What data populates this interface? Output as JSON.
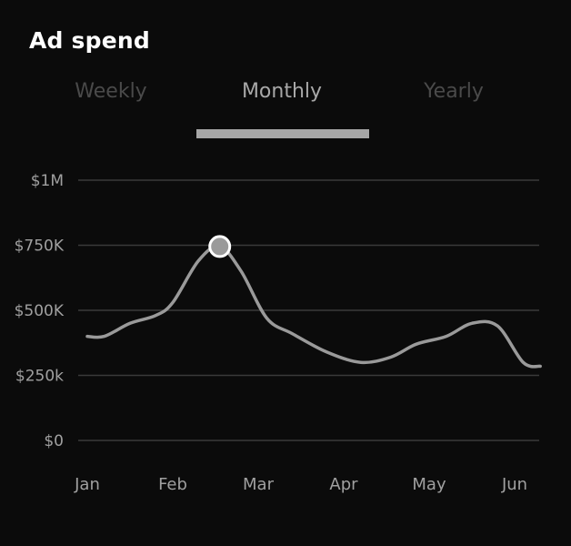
{
  "header": {
    "title": "Ad spend"
  },
  "tabs": [
    {
      "label": "Weekly",
      "active": false
    },
    {
      "label": "Monthly",
      "active": true
    },
    {
      "label": "Yearly",
      "active": false
    }
  ],
  "colors": {
    "background": "#0b0b0b",
    "line": "#9a9a9a",
    "grid": "#3a3a3a",
    "tick_text": "#a0a0a0",
    "active_tab": "#a8a8a8",
    "inactive_tab": "#4a4a4a",
    "marker_fill": "#9a9a9a",
    "marker_stroke": "#ffffff"
  },
  "chart_data": {
    "type": "line",
    "x_ticks": [
      "Jan",
      "Feb",
      "Mar",
      "Apr",
      "May",
      "Jun"
    ],
    "y_ticks": [
      {
        "value": 0,
        "label": "$0"
      },
      {
        "value": 250000,
        "label": "$250k"
      },
      {
        "value": 500000,
        "label": "$500K"
      },
      {
        "value": 750000,
        "label": "$750K"
      },
      {
        "value": 1000000,
        "label": "$1M"
      }
    ],
    "ylim": [
      0,
      1000000
    ],
    "xlim": [
      0,
      5.3
    ],
    "grid": true,
    "series": [
      {
        "points": [
          {
            "x": 0.0,
            "y": 400000
          },
          {
            "x": 0.2,
            "y": 400000
          },
          {
            "x": 0.5,
            "y": 450000
          },
          {
            "x": 0.8,
            "y": 480000
          },
          {
            "x": 1.0,
            "y": 530000
          },
          {
            "x": 1.3,
            "y": 690000
          },
          {
            "x": 1.55,
            "y": 745000
          },
          {
            "x": 1.8,
            "y": 650000
          },
          {
            "x": 2.1,
            "y": 470000
          },
          {
            "x": 2.4,
            "y": 410000
          },
          {
            "x": 2.8,
            "y": 340000
          },
          {
            "x": 3.2,
            "y": 300000
          },
          {
            "x": 3.55,
            "y": 320000
          },
          {
            "x": 3.85,
            "y": 370000
          },
          {
            "x": 4.2,
            "y": 400000
          },
          {
            "x": 4.5,
            "y": 450000
          },
          {
            "x": 4.8,
            "y": 440000
          },
          {
            "x": 5.1,
            "y": 300000
          },
          {
            "x": 5.3,
            "y": 285000
          }
        ]
      }
    ],
    "highlight": {
      "x": 1.55,
      "y": 745000
    }
  }
}
